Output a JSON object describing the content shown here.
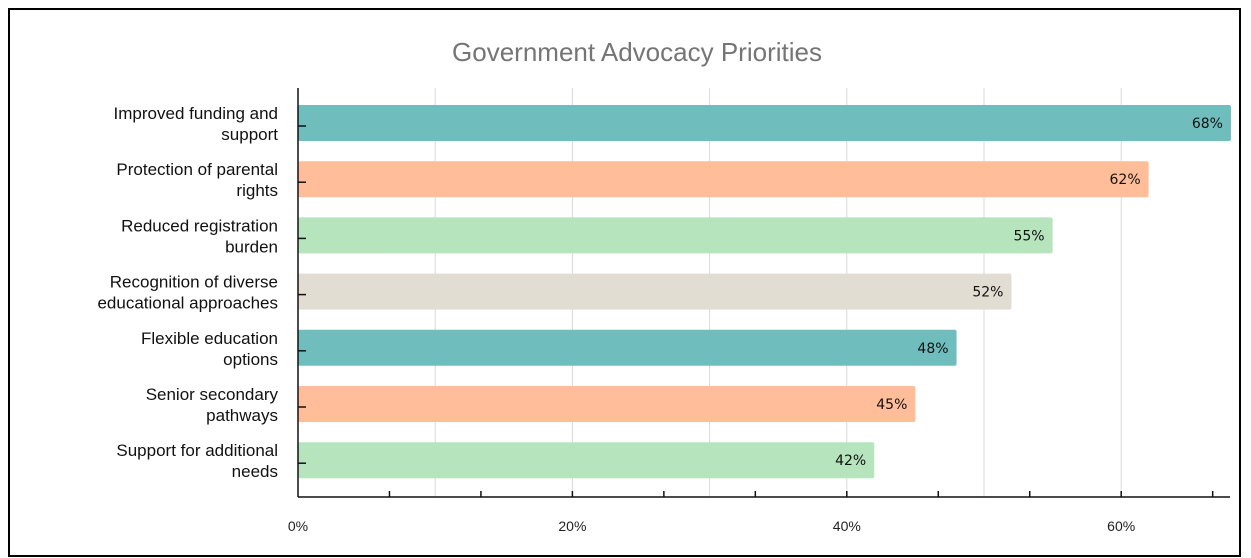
{
  "chart_data": {
    "type": "bar",
    "orientation": "horizontal",
    "title": "Government Advocacy Priorities",
    "xlabel": "",
    "ylabel": "",
    "categories": [
      [
        "Improved funding and",
        "support"
      ],
      [
        "Protection of parental",
        "rights"
      ],
      [
        "Reduced registration",
        "burden"
      ],
      [
        "Recognition of diverse",
        "educational approaches"
      ],
      [
        "Flexible education",
        "options"
      ],
      [
        "Senior secondary",
        "pathways"
      ],
      [
        "Support for additional",
        "needs"
      ]
    ],
    "values": [
      68,
      62,
      55,
      52,
      48,
      45,
      42
    ],
    "data_labels": [
      "68%",
      "62%",
      "55%",
      "52%",
      "48%",
      "45%",
      "42%"
    ],
    "colors": [
      "#70bdbd",
      "#ffbd99",
      "#b5e4bd",
      "#e2ddd2",
      "#70bdbd",
      "#ffbd99",
      "#b5e4bd"
    ],
    "xlim": [
      0,
      68
    ],
    "xticks": [
      0,
      20,
      40,
      60
    ],
    "xtick_labels": [
      "0%",
      "20%",
      "40%",
      "60%"
    ],
    "grid": true,
    "legend": "none"
  }
}
